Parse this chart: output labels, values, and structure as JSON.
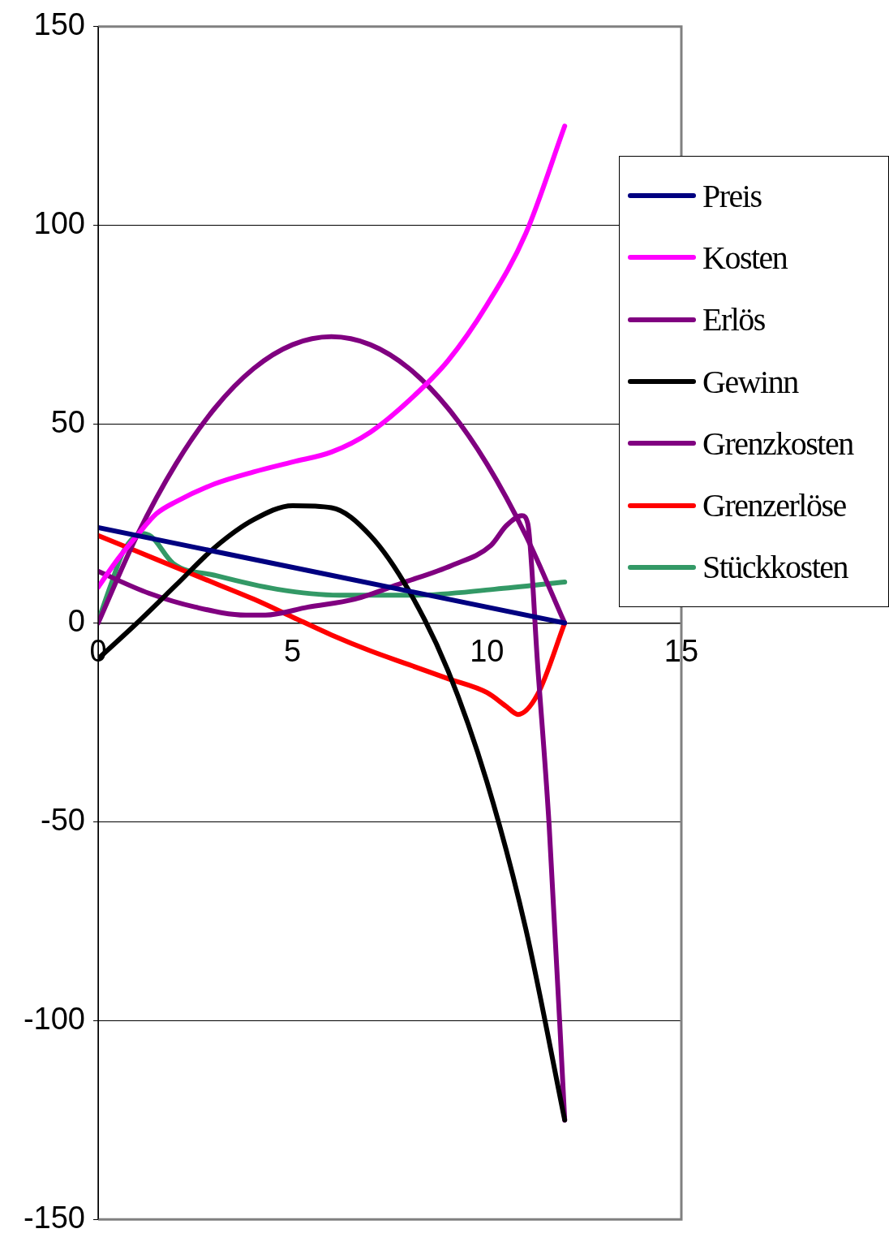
{
  "chart_data": {
    "type": "line",
    "xlim": [
      0,
      15
    ],
    "xticks": [
      0,
      5,
      10,
      15
    ],
    "ylim": [
      -150,
      150
    ],
    "yticks": [
      -150,
      -100,
      -50,
      0,
      50,
      100,
      150
    ],
    "grid": "y",
    "legend": "right",
    "marker": "none",
    "line_style": "solid",
    "series": [
      {
        "name": "Preis",
        "color": "#000080",
        "x": [
          0,
          12
        ],
        "values": [
          24,
          0
        ]
      },
      {
        "name": "Kosten",
        "color": "#ff00ff",
        "x": [
          0,
          0.5,
          1,
          1.5,
          2,
          3,
          4,
          5,
          6,
          7,
          8,
          9,
          10,
          11,
          12
        ],
        "values": [
          9,
          16,
          22,
          27.5,
          30.5,
          35,
          38,
          40.5,
          43,
          48,
          56,
          66,
          80,
          98,
          125
        ]
      },
      {
        "name": "Erlös",
        "color": "#800080",
        "x": [
          0,
          1,
          2,
          3,
          4,
          5,
          6,
          7,
          8,
          9,
          10,
          11,
          12
        ],
        "values": [
          0,
          22,
          40,
          54,
          64,
          70,
          72,
          70,
          64,
          54,
          40,
          22,
          0
        ]
      },
      {
        "name": "Gewinn",
        "color": "#000000",
        "x": [
          0,
          1,
          2,
          3,
          4,
          5,
          6,
          7,
          8,
          9,
          10,
          11,
          12
        ],
        "values": [
          -9,
          0,
          9.5,
          19,
          26,
          29.5,
          29,
          22,
          8,
          -12,
          -40,
          -77,
          -125
        ]
      },
      {
        "name": "Grenzkosten",
        "color": "#800080",
        "x": [
          0,
          1.3,
          2.5,
          3.8,
          4.3,
          5.4,
          6.6,
          7.8,
          9.1,
          10.1,
          10.5,
          10.9,
          11.05,
          11.3,
          11.6,
          12
        ],
        "values": [
          13,
          7.5,
          4,
          2,
          2,
          4,
          6,
          10,
          14.5,
          19.5,
          24.5,
          27,
          25,
          -10,
          -51,
          -125
        ]
      },
      {
        "name": "Grenzerlöse",
        "color": "#ff0000",
        "x": [
          0,
          1,
          2,
          3,
          4,
          5,
          6,
          7,
          8,
          9,
          10,
          10.5,
          10.8,
          11.3,
          12
        ],
        "values": [
          22,
          18,
          14,
          10,
          6,
          1.5,
          -3,
          -7,
          -10.5,
          -14,
          -17.5,
          -21,
          -23,
          -18,
          0
        ]
      },
      {
        "name": "Stückkosten",
        "color": "#339966",
        "x": [
          0,
          0.33,
          0.65,
          1.13,
          1.37,
          1.93,
          3,
          4.6,
          6.2,
          8.2,
          10.2,
          12
        ],
        "values": [
          0.5,
          9.7,
          18,
          22.5,
          21.7,
          15,
          12,
          8.5,
          7,
          7,
          8.5,
          10.3
        ]
      }
    ]
  }
}
